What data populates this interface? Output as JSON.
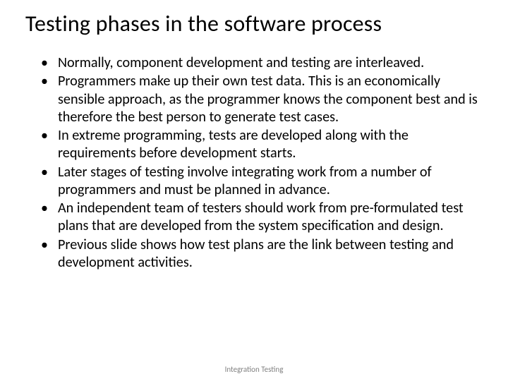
{
  "slide": {
    "title": "Testing phases in the software process",
    "bullets": [
      "Normally, component development and testing are interleaved.",
      "Programmers make up their own test data. This is an economically sensible approach, as the programmer knows the component best and is therefore the best person to generate test cases.",
      "In extreme programming, tests are developed along with the requirements before development starts.",
      "Later stages of testing involve integrating work from a number of programmers and must be planned in advance.",
      "An independent team of testers should work from pre-formulated test plans that are developed from the system specification and design.",
      "Previous slide shows how test plans are the link between testing and development activities."
    ],
    "footer": "Integration Testing"
  },
  "style": {
    "background_color": "#ffffff",
    "text_color": "#000000",
    "footer_color": "#7f7f7f",
    "title_fontsize": 32,
    "body_fontsize": 20,
    "footer_fontsize": 11,
    "font_family": "Calibri"
  }
}
